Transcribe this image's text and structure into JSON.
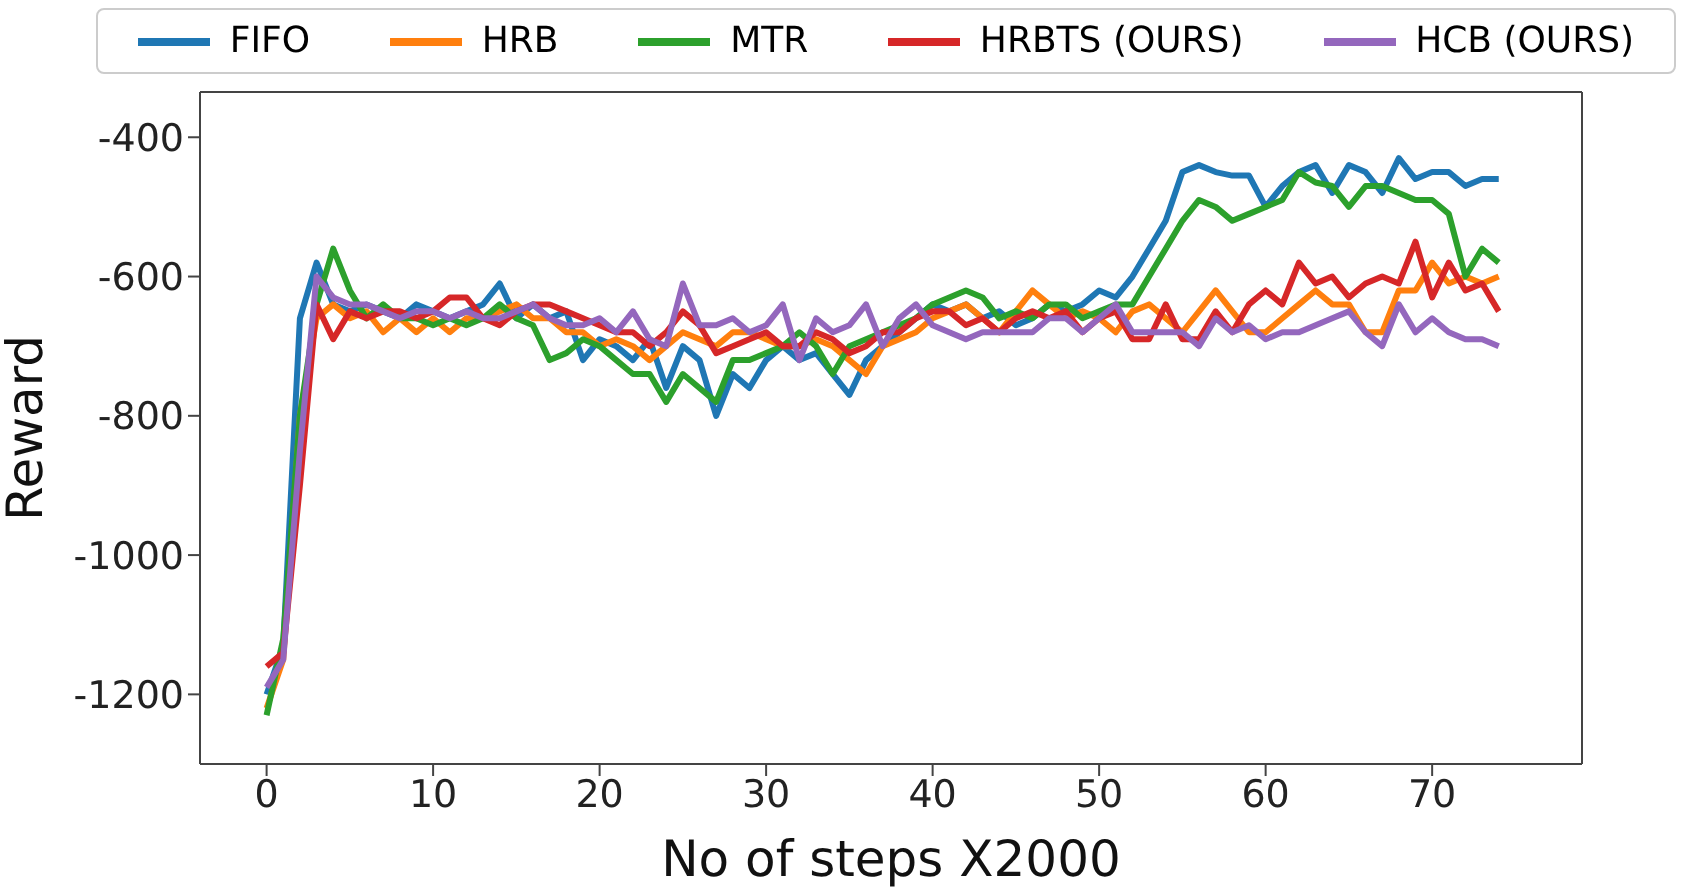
{
  "chart_data": {
    "type": "line",
    "xlabel": "No of steps X2000",
    "ylabel": "Reward",
    "xlim": [
      -4,
      79
    ],
    "ylim": [
      -1300,
      -335
    ],
    "xticks": [
      0,
      10,
      20,
      30,
      40,
      50,
      60,
      70
    ],
    "yticks": [
      -1200,
      -1000,
      -800,
      -600,
      -400
    ],
    "grid": false,
    "legend": "top",
    "marker": "none",
    "line_style": "solid",
    "x": [
      0,
      1,
      2,
      3,
      4,
      5,
      6,
      7,
      8,
      9,
      10,
      11,
      12,
      13,
      14,
      15,
      16,
      17,
      18,
      19,
      20,
      21,
      22,
      23,
      24,
      25,
      26,
      27,
      28,
      29,
      30,
      31,
      32,
      33,
      34,
      35,
      36,
      37,
      38,
      39,
      40,
      41,
      42,
      43,
      44,
      45,
      46,
      47,
      48,
      49,
      50,
      51,
      52,
      53,
      54,
      55,
      56,
      57,
      58,
      59,
      60,
      61,
      62,
      63,
      64,
      65,
      66,
      67,
      68,
      69,
      70,
      71,
      72,
      73,
      74
    ],
    "series": [
      {
        "name": "FIFO",
        "color": "#1f77b4",
        "values": [
          -1200,
          -1130,
          -660,
          -580,
          -640,
          -650,
          -640,
          -650,
          -660,
          -640,
          -650,
          -660,
          -650,
          -640,
          -610,
          -660,
          -640,
          -660,
          -650,
          -720,
          -690,
          -700,
          -720,
          -690,
          -760,
          -700,
          -720,
          -800,
          -740,
          -760,
          -720,
          -700,
          -720,
          -710,
          -740,
          -770,
          -720,
          -700,
          -680,
          -660,
          -640,
          -650,
          -640,
          -660,
          -650,
          -670,
          -660,
          -640,
          -650,
          -640,
          -620,
          -630,
          -600,
          -560,
          -520,
          -450,
          -440,
          -450,
          -455,
          -455,
          -500,
          -470,
          -450,
          -440,
          -480,
          -440,
          -450,
          -480,
          -430,
          -460,
          -450,
          -450,
          -470,
          -460,
          -460
        ]
      },
      {
        "name": "HRB",
        "color": "#ff7f0e",
        "values": [
          -1220,
          -1150,
          -800,
          -660,
          -640,
          -660,
          -650,
          -680,
          -660,
          -680,
          -660,
          -680,
          -660,
          -660,
          -650,
          -640,
          -660,
          -660,
          -680,
          -680,
          -700,
          -690,
          -700,
          -720,
          -700,
          -680,
          -690,
          -700,
          -680,
          -680,
          -690,
          -700,
          -700,
          -690,
          -700,
          -720,
          -740,
          -700,
          -690,
          -680,
          -660,
          -650,
          -640,
          -660,
          -680,
          -650,
          -620,
          -640,
          -660,
          -650,
          -660,
          -680,
          -650,
          -640,
          -660,
          -680,
          -650,
          -620,
          -650,
          -680,
          -680,
          -660,
          -640,
          -620,
          -640,
          -640,
          -680,
          -680,
          -620,
          -620,
          -580,
          -610,
          -600,
          -610,
          -600
        ]
      },
      {
        "name": "MTR",
        "color": "#2ca02c",
        "values": [
          -1230,
          -1120,
          -800,
          -640,
          -560,
          -620,
          -660,
          -640,
          -660,
          -660,
          -670,
          -660,
          -670,
          -660,
          -640,
          -660,
          -670,
          -720,
          -710,
          -690,
          -700,
          -720,
          -740,
          -740,
          -780,
          -740,
          -760,
          -780,
          -720,
          -720,
          -710,
          -700,
          -680,
          -700,
          -740,
          -700,
          -690,
          -680,
          -670,
          -660,
          -640,
          -630,
          -620,
          -630,
          -660,
          -650,
          -660,
          -640,
          -640,
          -660,
          -650,
          -640,
          -640,
          -600,
          -560,
          -520,
          -490,
          -500,
          -520,
          -510,
          -500,
          -490,
          -450,
          -465,
          -470,
          -500,
          -470,
          -470,
          -480,
          -490,
          -490,
          -510,
          -600,
          -560,
          -580
        ]
      },
      {
        "name": "HRBTS (OURS)",
        "color": "#d62728",
        "values": [
          -1160,
          -1140,
          -900,
          -640,
          -690,
          -650,
          -660,
          -650,
          -650,
          -660,
          -650,
          -630,
          -630,
          -660,
          -670,
          -650,
          -640,
          -640,
          -650,
          -660,
          -670,
          -680,
          -680,
          -700,
          -680,
          -650,
          -670,
          -710,
          -700,
          -690,
          -680,
          -700,
          -700,
          -680,
          -690,
          -710,
          -700,
          -680,
          -680,
          -660,
          -650,
          -650,
          -670,
          -660,
          -680,
          -660,
          -650,
          -660,
          -650,
          -680,
          -660,
          -650,
          -690,
          -690,
          -640,
          -690,
          -690,
          -650,
          -680,
          -640,
          -620,
          -640,
          -580,
          -610,
          -600,
          -630,
          -610,
          -600,
          -610,
          -550,
          -630,
          -580,
          -620,
          -610,
          -650
        ]
      },
      {
        "name": "HCB (OURS)",
        "color": "#9467bd",
        "values": [
          -1190,
          -1150,
          -850,
          -600,
          -630,
          -640,
          -640,
          -650,
          -660,
          -650,
          -650,
          -660,
          -650,
          -660,
          -660,
          -650,
          -640,
          -660,
          -670,
          -670,
          -660,
          -680,
          -650,
          -690,
          -700,
          -610,
          -670,
          -670,
          -660,
          -680,
          -670,
          -640,
          -720,
          -660,
          -680,
          -670,
          -640,
          -700,
          -660,
          -640,
          -670,
          -680,
          -690,
          -680,
          -680,
          -680,
          -680,
          -660,
          -660,
          -680,
          -660,
          -640,
          -680,
          -680,
          -680,
          -680,
          -700,
          -660,
          -680,
          -670,
          -690,
          -680,
          -680,
          -670,
          -660,
          -650,
          -680,
          -700,
          -640,
          -680,
          -660,
          -680,
          -690,
          -690,
          -700
        ]
      }
    ]
  }
}
